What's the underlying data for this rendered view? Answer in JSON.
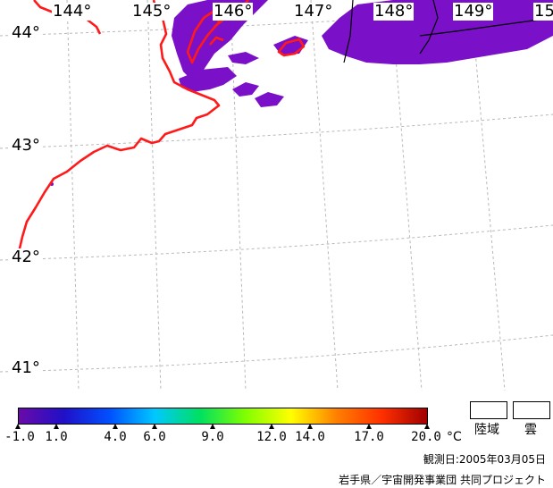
{
  "map": {
    "longitude_labels": [
      "144°",
      "145°",
      "146°",
      "147°",
      "148°",
      "149°",
      "15"
    ],
    "latitude_labels": [
      "44°",
      "43°",
      "42°",
      "41°"
    ],
    "colors": {
      "coastline": "#ff1a1a",
      "data_cloud_region": "#7a10c8",
      "graticule": "#b8b8b8",
      "background": "#ffffff",
      "border_line": "#000000"
    }
  },
  "colorbar": {
    "tick_labels": [
      "-1.0",
      "1.0",
      "4.0",
      "6.0",
      "9.0",
      "12.0",
      "14.0",
      "17.0",
      "20.0"
    ],
    "unit": "°C",
    "stops": [
      "#6a0aa8",
      "#2010c8",
      "#0050ff",
      "#00c8ff",
      "#00e060",
      "#80ff00",
      "#ffff00",
      "#ff8000",
      "#ff3000",
      "#a00000"
    ]
  },
  "legend": {
    "land_label": "陸域",
    "cloud_label": "雲"
  },
  "footer": {
    "observation_date": "観測日:2005年03月05日",
    "credit": "岩手県／宇宙開発事業団 共同プロジェクト"
  }
}
